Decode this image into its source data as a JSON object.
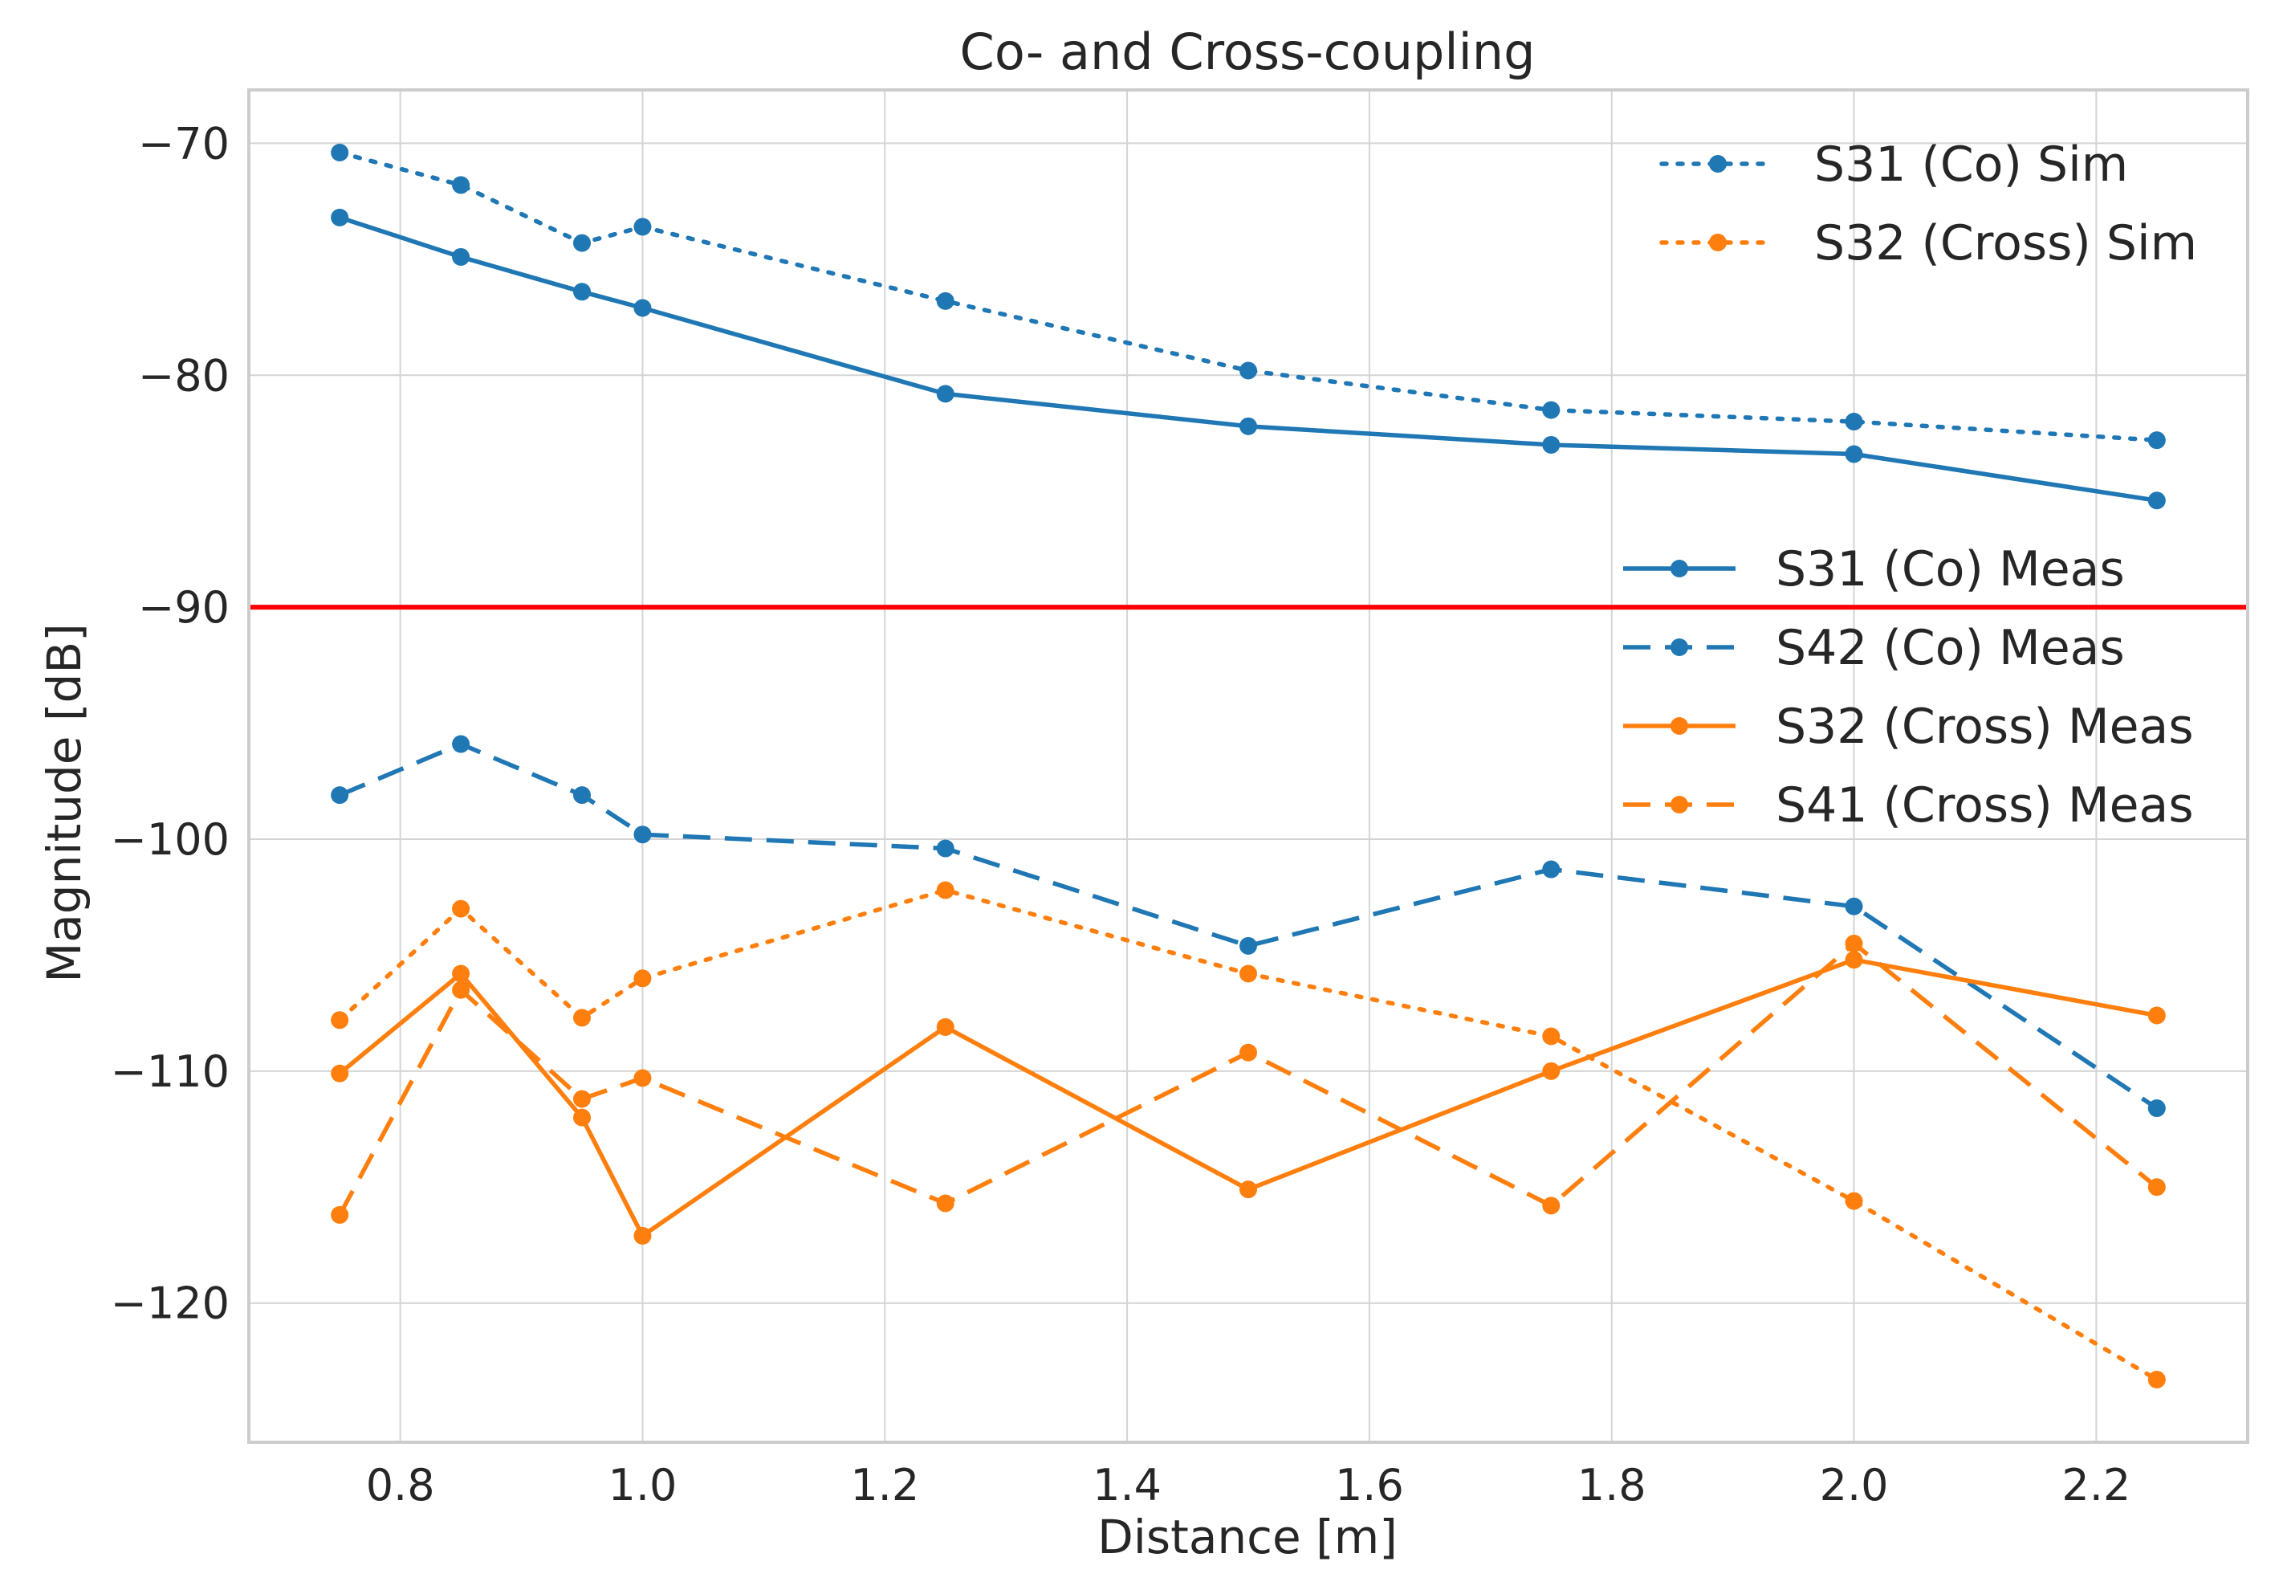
{
  "chart_data": {
    "type": "line",
    "title": "Co- and Cross-coupling",
    "xlabel": "Distance [m]",
    "ylabel": "Magnitude [dB]",
    "xlim": [
      0.675,
      2.325
    ],
    "ylim": [
      -126,
      -67.7
    ],
    "grid": true,
    "x": [
      0.75,
      0.85,
      0.95,
      1.0,
      1.25,
      1.5,
      1.75,
      2.0,
      2.25
    ],
    "x_ticks": [
      0.8,
      1.0,
      1.2,
      1.4,
      1.6,
      1.8,
      2.0,
      2.2
    ],
    "x_tick_labels": [
      "0.8",
      "1.0",
      "1.2",
      "1.4",
      "1.6",
      "1.8",
      "2.0",
      "2.2"
    ],
    "y_ticks": [
      -70,
      -80,
      -90,
      -100,
      -110,
      -120
    ],
    "y_tick_labels": [
      "−70",
      "−80",
      "−90",
      "−100",
      "−110",
      "−120"
    ],
    "reference_line": {
      "y": -90,
      "color": "#ff0000"
    },
    "series": [
      {
        "name": "S31 (Co) Sim",
        "color": "#1f77b4",
        "style": "dotted",
        "values": [
          -70.4,
          -71.8,
          -74.3,
          -73.6,
          -76.8,
          -79.8,
          -81.5,
          -82.0,
          -82.8
        ]
      },
      {
        "name": "S32 (Cross) Sim",
        "color": "#ff7f0e",
        "style": "dotted",
        "values": [
          -107.8,
          -103.0,
          -107.7,
          -106.0,
          -102.2,
          -105.8,
          -108.5,
          -115.6,
          -123.3
        ]
      },
      {
        "name": "S31 (Co) Meas",
        "color": "#1f77b4",
        "style": "solid",
        "values": [
          -73.2,
          -74.9,
          -76.4,
          -77.1,
          -80.8,
          -82.2,
          -83.0,
          -83.4,
          -85.4
        ]
      },
      {
        "name": "S42 (Co) Meas",
        "color": "#1f77b4",
        "style": "dashed",
        "values": [
          -98.1,
          -95.9,
          -98.1,
          -99.8,
          -100.4,
          -104.6,
          -101.3,
          -102.9,
          -111.6
        ]
      },
      {
        "name": "S32 (Cross) Meas",
        "color": "#ff7f0e",
        "style": "solid",
        "values": [
          -110.1,
          -105.8,
          -112.0,
          -117.1,
          -108.1,
          -115.1,
          -110.0,
          -105.2,
          -107.6
        ]
      },
      {
        "name": "S41 (Cross) Meas",
        "color": "#ff7f0e",
        "style": "dashed",
        "values": [
          -116.2,
          -106.5,
          -111.2,
          -110.3,
          -115.7,
          -109.2,
          -115.8,
          -104.5,
          -115.0
        ]
      }
    ],
    "legends": [
      {
        "placement": "upper-right",
        "entries": [
          "S31 (Co) Sim",
          "S32 (Cross) Sim"
        ]
      },
      {
        "placement": "center-right",
        "entries": [
          "S31 (Co) Meas",
          "S42 (Co) Meas",
          "S32 (Cross) Meas",
          "S41 (Cross) Meas"
        ]
      }
    ]
  }
}
